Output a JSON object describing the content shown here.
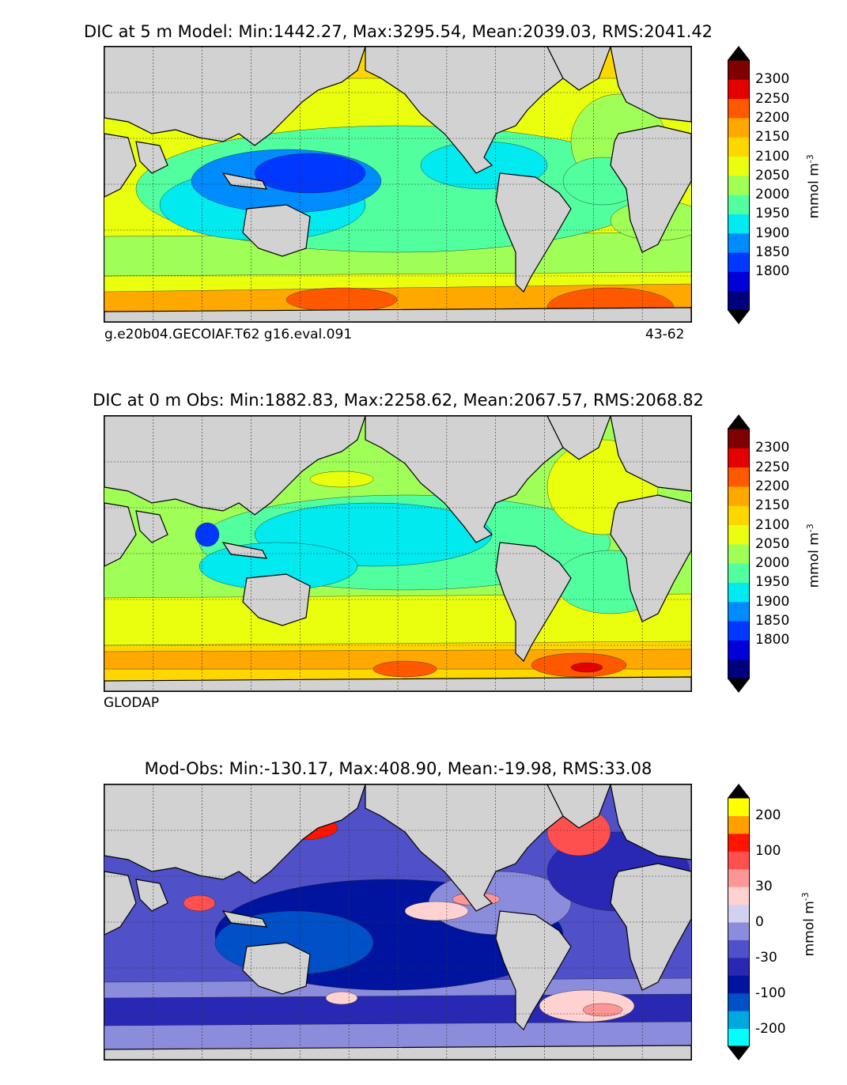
{
  "chart_data": [
    {
      "type": "heatmap",
      "title": "DIC at 5 m Model: Min:1442.27, Max:3295.54, Mean:2039.03, RMS:2041.42",
      "footer_left": "g.e20b04.GECOIAF.T62 g16.eval.091",
      "footer_right": "43-62",
      "colorbar": {
        "label": "mmol m",
        "label_sup": "-3",
        "ticks": [
          "2300",
          "2250",
          "2200",
          "2150",
          "2100",
          "2050",
          "2000",
          "1950",
          "1900",
          "1850",
          "1800"
        ],
        "levels": [
          1750,
          1800,
          1850,
          1900,
          1950,
          2000,
          2050,
          2100,
          2150,
          2200,
          2250,
          2300,
          2350
        ],
        "colors": [
          "#00007f",
          "#0000d8",
          "#0038ff",
          "#008cff",
          "#00eaf0",
          "#52ff9f",
          "#a0ff56",
          "#e9ff0d",
          "#ffd700",
          "#ffa800",
          "#ff5900",
          "#e50000",
          "#7f0000"
        ],
        "extend_low": "#000000",
        "extend_high": "#000000"
      }
    },
    {
      "type": "heatmap",
      "title": "DIC at 0 m Obs: Min:1882.83, Max:2258.62, Mean:2067.57, RMS:2068.82",
      "footer_left": "GLODAP",
      "colorbar": {
        "label": "mmol m",
        "label_sup": "-3",
        "ticks": [
          "2300",
          "2250",
          "2200",
          "2150",
          "2100",
          "2050",
          "2000",
          "1950",
          "1900",
          "1850",
          "1800"
        ],
        "levels": [
          1750,
          1800,
          1850,
          1900,
          1950,
          2000,
          2050,
          2100,
          2150,
          2200,
          2250,
          2300,
          2350
        ],
        "colors": [
          "#00007f",
          "#0000d8",
          "#0038ff",
          "#008cff",
          "#00eaf0",
          "#52ff9f",
          "#a0ff56",
          "#e9ff0d",
          "#ffd700",
          "#ffa800",
          "#ff5900",
          "#e50000",
          "#7f0000"
        ],
        "extend_low": "#000000",
        "extend_high": "#000000"
      }
    },
    {
      "type": "heatmap",
      "title": "Mod-Obs: Min:-130.17, Max:408.90, Mean:-19.98, RMS:33.08",
      "colorbar": {
        "label": "mmol m",
        "label_sup": "-3",
        "ticks": [
          "200",
          "100",
          "30",
          "0",
          "-30",
          "-100",
          "-200"
        ],
        "levels": [
          -300,
          -200,
          -150,
          -100,
          -50,
          -30,
          -10,
          0,
          10,
          30,
          50,
          100,
          150,
          200,
          300
        ],
        "colors": [
          "#00ffff",
          "#00a8e0",
          "#0050c8",
          "#0014a0",
          "#2828b4",
          "#5050c8",
          "#8c8cdc",
          "#d2d2f0",
          "#ffd2d2",
          "#ff9696",
          "#ff5050",
          "#ff1400",
          "#ffa000",
          "#ffff00"
        ],
        "extend_low": "#000000",
        "extend_high": "#000000"
      }
    }
  ]
}
